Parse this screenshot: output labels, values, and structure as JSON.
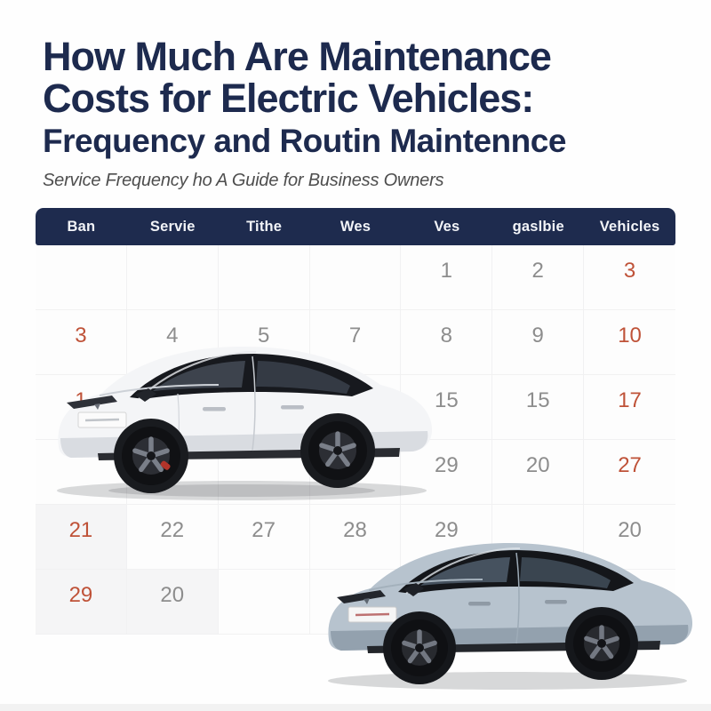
{
  "header": {
    "title_line1": "How Much Are Maintenance",
    "title_line2": "Costs for Electric Vehicles:",
    "title_line3": "Frequency and Routin Maintennce",
    "subtitle": "Service Frequency ho A Guide for Business Owners"
  },
  "colors": {
    "title_navy": "#1d2a4e",
    "calendar_header_bg": "#1e2b4e",
    "calendar_header_text": "#f2f4f8",
    "number_gray": "#8d8d8d",
    "number_accent_orange": "#bf5238",
    "car1_body": "#f4f5f7",
    "car2_body": "#b7c3ce"
  },
  "calendar": {
    "headers": [
      "Ban",
      "Servie",
      "Tithe",
      "Wes",
      "Ves",
      "gaslbie",
      "Vehicles"
    ],
    "rows": [
      [
        "",
        "",
        "",
        "",
        "1",
        "2",
        "3"
      ],
      [
        "3",
        "4",
        "5",
        "7",
        "8",
        "9",
        "10"
      ],
      [
        "1",
        "",
        "",
        "",
        "15",
        "15",
        "17"
      ],
      [
        "",
        "",
        "",
        "",
        "29",
        "20",
        "27"
      ],
      [
        "21",
        "22",
        "27",
        "28",
        "29",
        "",
        "20"
      ],
      [
        "29",
        "20",
        "",
        "",
        "",
        "",
        ""
      ]
    ],
    "orange_cells": [
      [
        0,
        6
      ],
      [
        1,
        0
      ],
      [
        1,
        6
      ],
      [
        2,
        0
      ],
      [
        2,
        6
      ],
      [
        3,
        6
      ],
      [
        4,
        0
      ],
      [
        5,
        0
      ]
    ],
    "shaded_cells": [
      [
        4,
        0
      ],
      [
        5,
        0
      ],
      [
        5,
        1
      ]
    ]
  },
  "cars": [
    {
      "description": "white-tesla-style-suv",
      "body_color": "#f4f5f7"
    },
    {
      "description": "steel-blue-tesla-style-suv",
      "body_color": "#b7c3ce"
    }
  ]
}
